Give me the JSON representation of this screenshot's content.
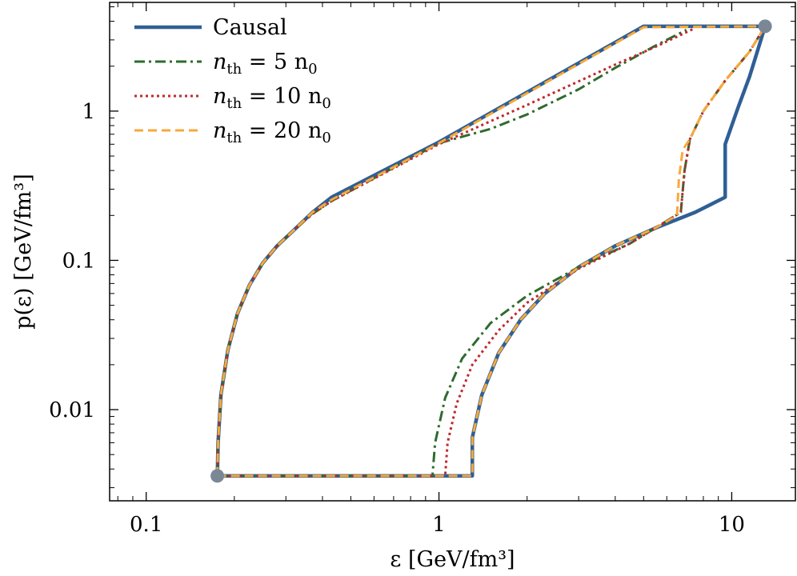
{
  "chart_data": {
    "type": "line",
    "title": "",
    "xlabel": "ε [GeV/fm³]",
    "ylabel": "p(ε) [GeV/fm³]",
    "x_scale": "log",
    "y_scale": "log",
    "xlim": [
      0.075,
      16.5
    ],
    "ylim": [
      0.00245,
      5.35
    ],
    "x_ticks": [
      {
        "value": 0.1,
        "label": "0.1"
      },
      {
        "value": 1,
        "label": "1"
      },
      {
        "value": 10,
        "label": "10"
      }
    ],
    "y_ticks": [
      {
        "value": 0.01,
        "label": "0.01"
      },
      {
        "value": 0.1,
        "label": "0.1"
      },
      {
        "value": 1,
        "label": "1"
      }
    ],
    "grid": false,
    "legend_position": "top-left",
    "colors": {
      "causal": "#2f5f95",
      "n5": "#2e6b2e",
      "n10": "#c0282d",
      "n20": "#f7a93a",
      "endpoint": "#7a8795"
    },
    "series": [
      {
        "name": "Causal",
        "label_text": "Causal",
        "style": "solid",
        "color_key": "causal",
        "segments": [
          [
            [
              0.175,
              0.0036
            ],
            [
              0.176,
              0.006
            ],
            [
              0.18,
              0.0126
            ],
            [
              0.19,
              0.025
            ],
            [
              0.205,
              0.044
            ],
            [
              0.225,
              0.068
            ],
            [
              0.25,
              0.096
            ],
            [
              0.28,
              0.125
            ],
            [
              0.32,
              0.16
            ],
            [
              0.37,
              0.21
            ],
            [
              0.43,
              0.265
            ],
            [
              1.0,
              0.62
            ],
            [
              5.0,
              3.7
            ],
            [
              13.0,
              3.7
            ]
          ],
          [
            [
              0.175,
              0.0036
            ],
            [
              1.3,
              0.0036
            ],
            [
              1.3,
              0.0065
            ],
            [
              1.4,
              0.0125
            ],
            [
              1.6,
              0.024
            ],
            [
              1.9,
              0.04
            ],
            [
              2.3,
              0.06
            ],
            [
              3.0,
              0.09
            ],
            [
              4.0,
              0.125
            ],
            [
              5.5,
              0.165
            ],
            [
              7.5,
              0.21
            ],
            [
              9.5,
              0.265
            ],
            [
              9.5,
              0.6
            ],
            [
              10.5,
              1.05
            ],
            [
              11.5,
              1.7
            ],
            [
              12.3,
              2.6
            ],
            [
              13.0,
              3.7
            ]
          ]
        ]
      },
      {
        "name": "n_th = 5 n_0",
        "label_main": "n",
        "label_sub": "th",
        "label_rest": " = 5 n",
        "label_sub2": "0",
        "style": "dashdot",
        "color_key": "n5",
        "segments": [
          [
            [
              0.175,
              0.0036
            ],
            [
              0.176,
              0.006
            ],
            [
              0.18,
              0.0126
            ],
            [
              0.19,
              0.025
            ],
            [
              0.205,
              0.044
            ],
            [
              0.225,
              0.068
            ],
            [
              0.25,
              0.096
            ],
            [
              0.28,
              0.125
            ],
            [
              0.32,
              0.16
            ],
            [
              0.37,
              0.205
            ],
            [
              0.43,
              0.25
            ],
            [
              1.0,
              0.61
            ],
            [
              1.5,
              0.76
            ],
            [
              2.0,
              0.95
            ],
            [
              3.0,
              1.4
            ],
            [
              4.0,
              1.95
            ],
            [
              5.5,
              2.75
            ],
            [
              7.0,
              3.5
            ]
          ],
          [
            [
              0.175,
              0.0036
            ],
            [
              0.95,
              0.0036
            ],
            [
              0.97,
              0.006
            ],
            [
              1.05,
              0.012
            ],
            [
              1.2,
              0.022
            ],
            [
              1.5,
              0.038
            ],
            [
              2.0,
              0.058
            ],
            [
              3.0,
              0.09
            ],
            [
              4.5,
              0.13
            ],
            [
              6.7,
              0.21
            ],
            [
              6.9,
              0.4
            ],
            [
              7.2,
              0.65
            ],
            [
              8.0,
              1.0
            ],
            [
              9.5,
              1.6
            ],
            [
              11.5,
              2.5
            ],
            [
              13.0,
              3.7
            ]
          ]
        ]
      },
      {
        "name": "n_th = 10 n_0",
        "label_main": "n",
        "label_sub": "th",
        "label_rest": " = 10 n",
        "label_sub2": "0",
        "style": "dotted",
        "color_key": "n10",
        "segments": [
          [
            [
              0.175,
              0.0036
            ],
            [
              0.176,
              0.006
            ],
            [
              0.18,
              0.0126
            ],
            [
              0.19,
              0.025
            ],
            [
              0.205,
              0.044
            ],
            [
              0.225,
              0.068
            ],
            [
              0.25,
              0.096
            ],
            [
              0.28,
              0.125
            ],
            [
              0.32,
              0.16
            ],
            [
              0.37,
              0.205
            ],
            [
              0.43,
              0.25
            ],
            [
              1.0,
              0.6
            ],
            [
              2.0,
              1.1
            ],
            [
              4.0,
              2.05
            ],
            [
              5.5,
              2.7
            ],
            [
              7.5,
              3.6
            ]
          ],
          [
            [
              0.175,
              0.0036
            ],
            [
              1.05,
              0.0036
            ],
            [
              1.07,
              0.006
            ],
            [
              1.15,
              0.011
            ],
            [
              1.3,
              0.02
            ],
            [
              1.6,
              0.034
            ],
            [
              2.0,
              0.052
            ],
            [
              3.0,
              0.088
            ],
            [
              4.5,
              0.13
            ],
            [
              6.7,
              0.21
            ],
            [
              6.9,
              0.4
            ],
            [
              7.2,
              0.65
            ],
            [
              8.0,
              1.0
            ],
            [
              9.5,
              1.6
            ],
            [
              11.5,
              2.5
            ],
            [
              13.0,
              3.7
            ]
          ]
        ]
      },
      {
        "name": "n_th = 20 n_0",
        "label_main": "n",
        "label_sub": "th",
        "label_rest": " = 20 n",
        "label_sub2": "0",
        "style": "dashed",
        "color_key": "n20",
        "segments": [
          [
            [
              0.175,
              0.0036
            ],
            [
              0.176,
              0.006
            ],
            [
              0.18,
              0.0126
            ],
            [
              0.19,
              0.025
            ],
            [
              0.205,
              0.044
            ],
            [
              0.225,
              0.068
            ],
            [
              0.25,
              0.096
            ],
            [
              0.28,
              0.125
            ],
            [
              0.32,
              0.16
            ],
            [
              0.37,
              0.21
            ],
            [
              0.43,
              0.255
            ],
            [
              1.0,
              0.61
            ],
            [
              5.0,
              3.65
            ],
            [
              13.0,
              3.7
            ]
          ],
          [
            [
              0.175,
              0.0036
            ],
            [
              1.3,
              0.0036
            ],
            [
              1.3,
              0.0065
            ],
            [
              1.4,
              0.0125
            ],
            [
              1.6,
              0.024
            ],
            [
              1.9,
              0.04
            ],
            [
              2.3,
              0.06
            ],
            [
              3.0,
              0.09
            ],
            [
              4.0,
              0.125
            ],
            [
              5.5,
              0.165
            ],
            [
              6.5,
              0.2
            ],
            [
              6.6,
              0.35
            ],
            [
              6.8,
              0.55
            ],
            [
              7.2,
              0.65
            ],
            [
              8.0,
              1.0
            ],
            [
              9.5,
              1.6
            ],
            [
              11.5,
              2.5
            ],
            [
              13.0,
              3.7
            ]
          ]
        ]
      }
    ],
    "endpoints": [
      {
        "x": 0.175,
        "y": 0.0036
      },
      {
        "x": 13.0,
        "y": 3.7
      }
    ]
  }
}
